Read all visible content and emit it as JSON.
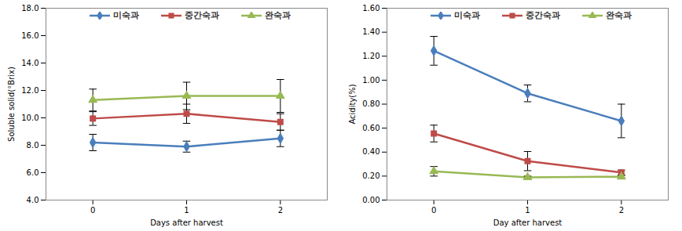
{
  "chart_data": [
    {
      "type": "line",
      "x": [
        0,
        1,
        2
      ],
      "xlabel": "Days after harvest",
      "ylabel": "Soluble solid(°Brix)",
      "xlim": [
        -0.5,
        2.5
      ],
      "xticks": [
        0,
        1,
        2
      ],
      "ylim": [
        4,
        18
      ],
      "yticks": [
        {
          "value": 4,
          "label": "4.0"
        },
        {
          "value": 6,
          "label": "6.0"
        },
        {
          "value": 8,
          "label": "8.0"
        },
        {
          "value": 10,
          "label": "10.0"
        },
        {
          "value": 12,
          "label": "12.0"
        },
        {
          "value": 14,
          "label": "14.0"
        },
        {
          "value": 16,
          "label": "16.0"
        },
        {
          "value": 18,
          "label": "18.0"
        }
      ],
      "grid": false,
      "legend": "top",
      "series": [
        {
          "name": "미숙과",
          "color": "#4a7ebb",
          "marker": "diamond",
          "line_style": "solid",
          "values": [
            8.2,
            7.9,
            8.5
          ],
          "errors": [
            0.6,
            0.4,
            0.6
          ]
        },
        {
          "name": "중간숙과",
          "color": "#be4b48",
          "marker": "square",
          "line_style": "solid",
          "values": [
            9.95,
            10.3,
            9.7
          ],
          "errors": [
            0.5,
            0.7,
            0.6
          ]
        },
        {
          "name": "완숙과",
          "color": "#98b954",
          "marker": "triangle",
          "line_style": "solid",
          "values": [
            11.3,
            11.6,
            11.6
          ],
          "errors": [
            0.8,
            1.0,
            1.2
          ]
        }
      ]
    },
    {
      "type": "line",
      "x": [
        0,
        1,
        2
      ],
      "xlabel": "Day after harvest",
      "ylabel": "Acidity(%)",
      "xlim": [
        -0.5,
        2.5
      ],
      "xticks": [
        0,
        1,
        2
      ],
      "ylim": [
        0,
        1.6
      ],
      "yticks": [
        {
          "value": 0,
          "label": "0.00"
        },
        {
          "value": 0.2,
          "label": "0.20"
        },
        {
          "value": 0.4,
          "label": "0.40"
        },
        {
          "value": 0.6,
          "label": "0.60"
        },
        {
          "value": 0.8,
          "label": "0.80"
        },
        {
          "value": 1.0,
          "label": "1.00"
        },
        {
          "value": 1.2,
          "label": "1.20"
        },
        {
          "value": 1.4,
          "label": "1.40"
        },
        {
          "value": 1.6,
          "label": "1.60"
        }
      ],
      "grid": false,
      "legend": "top",
      "series": [
        {
          "name": "미숙과",
          "color": "#4a7ebb",
          "marker": "diamond",
          "line_style": "solid",
          "values": [
            1.245,
            0.89,
            0.66
          ],
          "errors": [
            0.12,
            0.07,
            0.14
          ]
        },
        {
          "name": "중간숙과",
          "color": "#be4b48",
          "marker": "square",
          "line_style": "solid",
          "values": [
            0.555,
            0.325,
            0.23
          ],
          "errors": [
            0.07,
            0.08,
            0.02
          ]
        },
        {
          "name": "완숙과",
          "color": "#98b954",
          "marker": "triangle",
          "line_style": "solid",
          "values": [
            0.24,
            0.19,
            0.195
          ],
          "errors": [
            0.04,
            0.01,
            0.01
          ]
        }
      ]
    }
  ]
}
